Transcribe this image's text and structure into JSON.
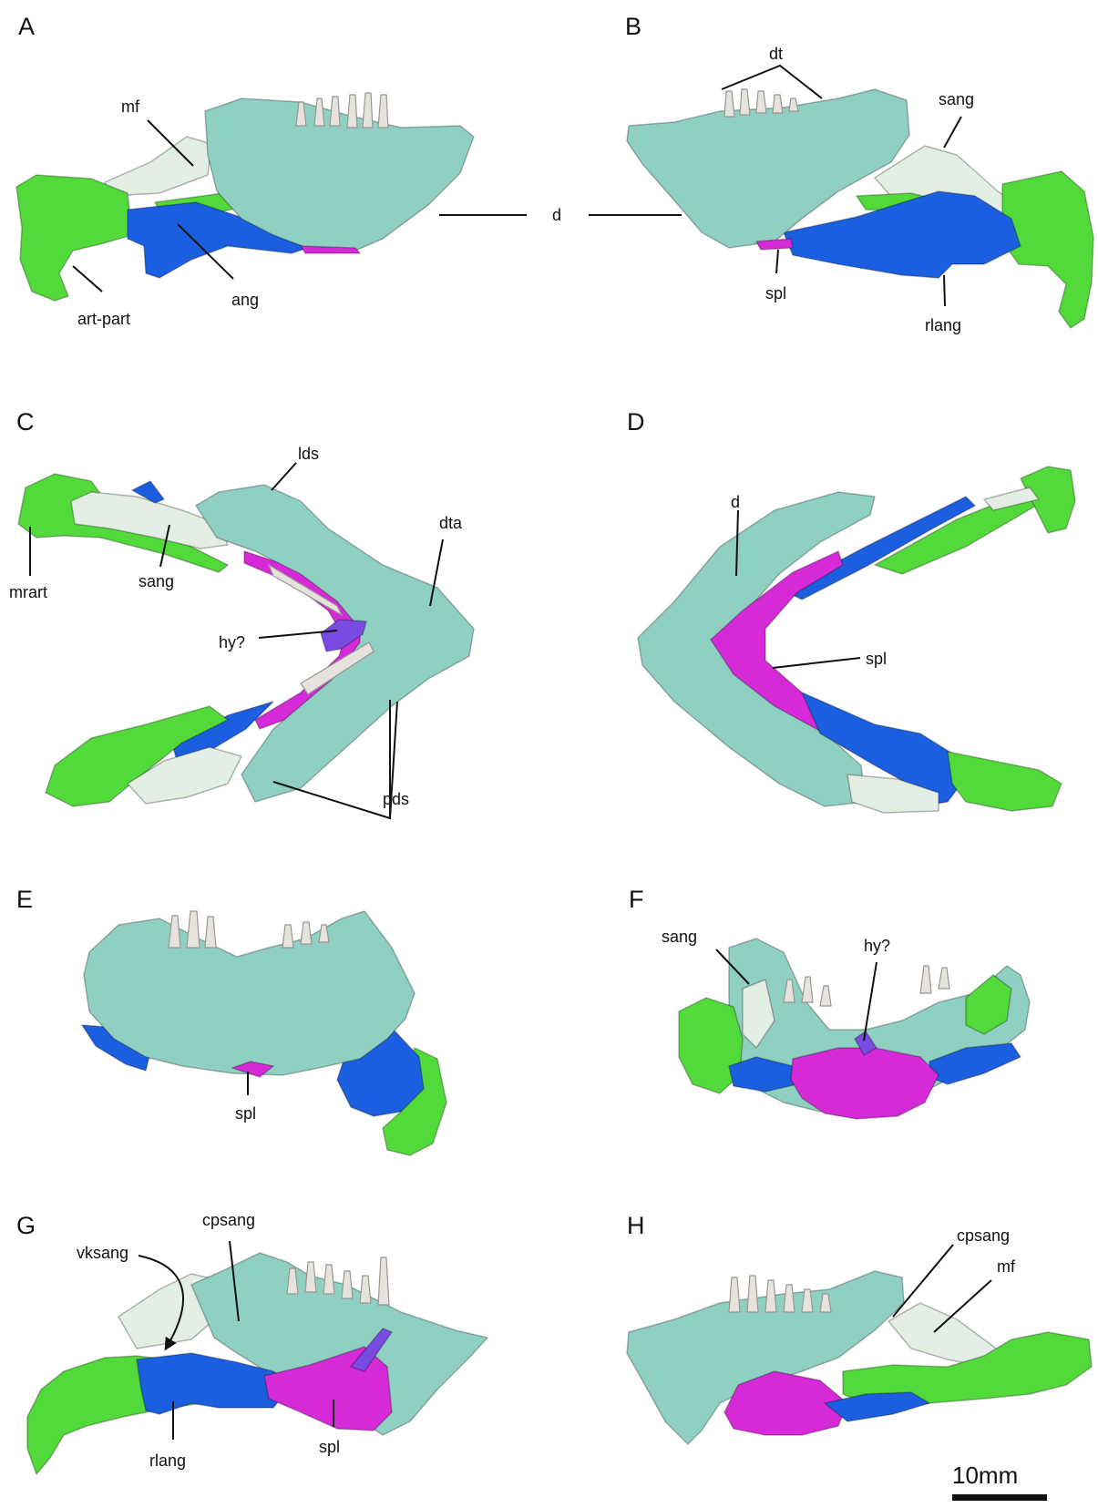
{
  "colors": {
    "dentary": "#8fd0c2",
    "dentary_dark": "#5e9e92",
    "articular": "#52d93a",
    "surangular": "#e3eee4",
    "angular": "#1b5fe0",
    "splenial": "#d62ad8",
    "hyoid": "#7a4be2",
    "teeth": "#e6e3df"
  },
  "panels": [
    {
      "letter": "A",
      "labels": [
        "mf",
        "ang",
        "art-part"
      ]
    },
    {
      "letter": "B",
      "labels": [
        "dt",
        "sang",
        "spl",
        "rlang"
      ]
    },
    {
      "letter": "C",
      "labels": [
        "lds",
        "dta",
        "mrart",
        "sang",
        "hy?",
        "pds"
      ]
    },
    {
      "letter": "D",
      "labels": [
        "d",
        "spl"
      ]
    },
    {
      "letter": "E",
      "labels": [
        "spl"
      ]
    },
    {
      "letter": "F",
      "labels": [
        "sang",
        "hy?"
      ]
    },
    {
      "letter": "G",
      "labels": [
        "cpsang",
        "vksang",
        "rlang",
        "spl"
      ]
    },
    {
      "letter": "H",
      "labels": [
        "cpsang",
        "mf"
      ]
    }
  ],
  "shared_label": "d",
  "scale_bar": "10mm"
}
